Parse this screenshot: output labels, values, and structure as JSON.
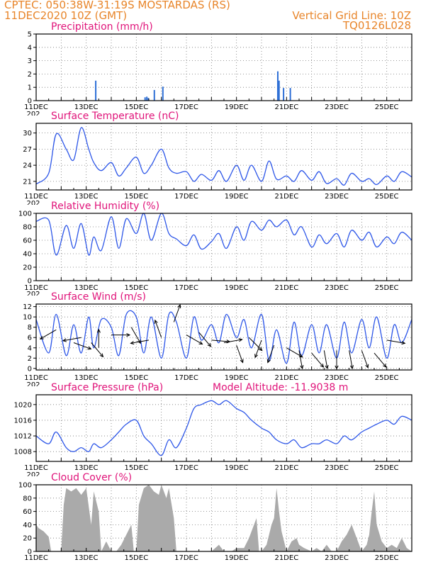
{
  "header": {
    "line1": "CPTEC:   050:38W-31:19S   MOSTARDAS (RS)",
    "line2": "11DEC2020 10Z (GMT)",
    "right1": "Vertical Grid Line: 10Z",
    "right2": "TQ0126L028"
  },
  "x_axis": {
    "days": [
      "11DEC",
      "13DEC",
      "15DEC",
      "17DEC",
      "19DEC",
      "21DEC",
      "23DEC",
      "25DEC"
    ],
    "day_values": [
      0,
      2,
      4,
      6,
      8,
      10,
      12,
      14
    ],
    "overflow_label": "202"
  },
  "chart_data": [
    {
      "id": "precip",
      "type": "bar",
      "title": "Precipitation (mm/h)",
      "color": "#2e6fd6",
      "ylim": [
        0,
        5
      ],
      "yticks": [
        0,
        1,
        2,
        3,
        4,
        5
      ],
      "x_days": [
        2.38,
        4.35,
        4.42,
        4.48,
        4.72,
        5.06,
        9.65,
        9.7,
        9.88,
        10.15
      ],
      "values": [
        1.5,
        0.25,
        0.3,
        0.2,
        0.8,
        1.05,
        2.2,
        1.5,
        0.95,
        0.95
      ]
    },
    {
      "id": "temp",
      "type": "line",
      "title": "Surface Temperature (nC)",
      "color": "#2e57e8",
      "ylim": [
        19.4,
        31.8
      ],
      "yticks": [
        21,
        24,
        27,
        30
      ],
      "x_days": [
        0,
        0.5,
        0.8,
        1.2,
        1.5,
        1.8,
        2.1,
        2.3,
        2.6,
        3.0,
        3.3,
        3.6,
        4.0,
        4.3,
        4.6,
        5.0,
        5.3,
        5.6,
        6.0,
        6.3,
        6.6,
        7.0,
        7.3,
        7.6,
        8.0,
        8.3,
        8.6,
        9.0,
        9.3,
        9.6,
        10.0,
        10.3,
        10.6,
        11.0,
        11.3,
        11.6,
        12.0,
        12.3,
        12.6,
        13.0,
        13.3,
        13.6,
        14.0,
        14.3,
        14.6,
        15.0
      ],
      "values": [
        20.5,
        22.5,
        29.8,
        27.0,
        25.0,
        31.0,
        27.0,
        24.5,
        23.0,
        24.5,
        22.0,
        23.5,
        25.5,
        22.5,
        24.0,
        27.0,
        23.5,
        22.5,
        22.8,
        21.0,
        22.3,
        21.2,
        23.0,
        21.0,
        24.0,
        21.2,
        24.0,
        21.0,
        24.8,
        21.4,
        22.0,
        21.0,
        23.0,
        21.2,
        22.8,
        20.6,
        21.5,
        20.3,
        22.5,
        21.0,
        21.5,
        20.4,
        22.0,
        21.0,
        22.8,
        21.8
      ]
    },
    {
      "id": "rh",
      "type": "line",
      "title": "Relative Humidity (%)",
      "color": "#2e57e8",
      "ylim": [
        0,
        100
      ],
      "yticks": [
        0,
        20,
        40,
        60,
        80,
        100
      ],
      "x_days": [
        0,
        0.5,
        0.8,
        1.2,
        1.5,
        1.8,
        2.1,
        2.3,
        2.6,
        3.0,
        3.3,
        3.6,
        4.0,
        4.3,
        4.6,
        5.0,
        5.3,
        5.6,
        6.0,
        6.3,
        6.6,
        7.0,
        7.3,
        7.6,
        8.0,
        8.3,
        8.6,
        9.0,
        9.3,
        9.6,
        10.0,
        10.3,
        10.6,
        11.0,
        11.3,
        11.6,
        12.0,
        12.3,
        12.6,
        13.0,
        13.3,
        13.6,
        14.0,
        14.3,
        14.6,
        15.0
      ],
      "values": [
        88,
        90,
        38,
        82,
        48,
        85,
        38,
        65,
        45,
        95,
        48,
        92,
        70,
        100,
        60,
        100,
        70,
        62,
        52,
        68,
        47,
        58,
        70,
        48,
        80,
        60,
        88,
        75,
        90,
        80,
        90,
        68,
        80,
        50,
        68,
        55,
        70,
        50,
        75,
        60,
        72,
        50,
        65,
        55,
        72,
        60
      ]
    },
    {
      "id": "wind",
      "type": "line",
      "title": "Surface Wind (m/s)",
      "color": "#2e57e8",
      "ylim": [
        -0.3,
        12.5
      ],
      "yticks": [
        0,
        2,
        4,
        6,
        8,
        10,
        12
      ],
      "x_days": [
        0,
        0.5,
        0.8,
        1.2,
        1.5,
        1.8,
        2.1,
        2.3,
        2.6,
        3.0,
        3.3,
        3.6,
        4.0,
        4.3,
        4.6,
        5.0,
        5.3,
        5.6,
        6.0,
        6.3,
        6.6,
        7.0,
        7.3,
        7.6,
        8.0,
        8.3,
        8.6,
        9.0,
        9.3,
        9.6,
        10.0,
        10.3,
        10.6,
        11.0,
        11.3,
        11.6,
        12.0,
        12.3,
        12.6,
        13.0,
        13.3,
        13.6,
        14.0,
        14.3,
        14.6,
        15.0
      ],
      "values": [
        9.5,
        3.0,
        10.5,
        2.5,
        8.5,
        3.0,
        10.0,
        4.0,
        9.5,
        8.0,
        2.5,
        10.5,
        10.0,
        3.0,
        10.0,
        2.0,
        10.5,
        9.0,
        2.0,
        10.0,
        5.5,
        8.5,
        5.0,
        10.5,
        6.0,
        9.5,
        4.0,
        10.5,
        1.5,
        7.5,
        1.0,
        9.0,
        2.5,
        8.5,
        3.0,
        8.5,
        2.0,
        9.0,
        3.0,
        9.5,
        4.0,
        10.0,
        2.0,
        8.5,
        5.0,
        9.5
      ]
    },
    {
      "id": "pressure",
      "type": "line",
      "title": "Surface Pressure (hPa)",
      "subtitle": "Model Altitude:  -11.9038  m",
      "color": "#2e57e8",
      "ylim": [
        1005.5,
        1022.5
      ],
      "yticks": [
        1008,
        1012,
        1016,
        1020
      ],
      "x_days": [
        0,
        0.5,
        0.8,
        1.2,
        1.5,
        1.8,
        2.1,
        2.3,
        2.6,
        3.0,
        3.3,
        3.6,
        4.0,
        4.3,
        4.6,
        5.0,
        5.3,
        5.6,
        6.0,
        6.3,
        6.6,
        7.0,
        7.3,
        7.6,
        8.0,
        8.3,
        8.6,
        9.0,
        9.3,
        9.6,
        10.0,
        10.3,
        10.6,
        11.0,
        11.3,
        11.6,
        12.0,
        12.3,
        12.6,
        13.0,
        13.3,
        13.6,
        14.0,
        14.3,
        14.6,
        15.0
      ],
      "values": [
        1012,
        1010,
        1013,
        1009,
        1008,
        1009,
        1008,
        1010,
        1009,
        1011,
        1013,
        1015,
        1016,
        1012,
        1010,
        1007,
        1011,
        1009,
        1014,
        1019,
        1020,
        1021,
        1020,
        1021,
        1019,
        1018,
        1016,
        1014,
        1013,
        1011,
        1010,
        1011,
        1009,
        1010,
        1010,
        1011,
        1010,
        1012,
        1011,
        1013,
        1014,
        1015,
        1016,
        1015,
        1017,
        1016
      ]
    },
    {
      "id": "cloud",
      "type": "area",
      "title": "Cloud Cover (%)",
      "color": "#aaaaaa",
      "ylim": [
        0,
        100
      ],
      "yticks": [
        0,
        20,
        40,
        60,
        80,
        100
      ],
      "x_days": [
        0,
        0.1,
        0.3,
        0.5,
        0.6,
        0.7,
        1.0,
        1.1,
        1.2,
        1.4,
        1.6,
        1.8,
        2.0,
        2.2,
        2.3,
        2.5,
        2.6,
        2.8,
        3.0,
        3.2,
        3.4,
        3.6,
        3.8,
        3.9,
        4.0,
        4.1,
        4.3,
        4.5,
        4.7,
        4.9,
        5.0,
        5.2,
        5.3,
        5.5,
        5.6,
        5.9,
        6.2,
        6.5,
        7.0,
        7.3,
        7.5,
        7.8,
        8.0,
        8.3,
        8.5,
        8.8,
        8.9,
        9.0,
        9.2,
        9.4,
        9.5,
        9.6,
        9.7,
        9.8,
        9.9,
        10.0,
        10.2,
        10.4,
        10.5,
        10.7,
        11.0,
        11.2,
        11.4,
        11.6,
        11.8,
        12.0,
        12.2,
        12.4,
        12.6,
        12.8,
        13.0,
        13.2,
        13.3,
        13.4,
        13.5,
        13.6,
        13.8,
        14.0,
        14.2,
        14.4,
        14.6,
        14.8,
        15.0
      ],
      "values": [
        40,
        35,
        30,
        22,
        0,
        0,
        0,
        70,
        95,
        90,
        95,
        85,
        95,
        40,
        90,
        60,
        0,
        15,
        0,
        0,
        10,
        25,
        40,
        0,
        0,
        70,
        95,
        100,
        90,
        85,
        100,
        80,
        95,
        50,
        0,
        0,
        0,
        0,
        0,
        10,
        0,
        0,
        5,
        5,
        20,
        50,
        0,
        0,
        10,
        40,
        50,
        95,
        60,
        30,
        15,
        0,
        15,
        20,
        10,
        5,
        0,
        5,
        0,
        10,
        0,
        0,
        15,
        25,
        40,
        20,
        0,
        10,
        25,
        60,
        90,
        40,
        15,
        5,
        10,
        5,
        20,
        5,
        0
      ]
    }
  ],
  "wind_vectors": {
    "color": "#000000",
    "items": [
      {
        "day": 0.8,
        "speed": 7.5,
        "dir_deg": 240
      },
      {
        "day": 1.5,
        "speed": 5.0,
        "dir_deg": 110
      },
      {
        "day": 1.8,
        "speed": 6.0,
        "dir_deg": 260
      },
      {
        "day": 2.2,
        "speed": 5.0,
        "dir_deg": 140
      },
      {
        "day": 2.5,
        "speed": 4.0,
        "dir_deg": 0
      },
      {
        "day": 3.0,
        "speed": 6.5,
        "dir_deg": 90
      },
      {
        "day": 3.8,
        "speed": 8.0,
        "dir_deg": 150
      },
      {
        "day": 4.5,
        "speed": 5.5,
        "dir_deg": 260
      },
      {
        "day": 5.0,
        "speed": 6.0,
        "dir_deg": 340
      },
      {
        "day": 5.5,
        "speed": 9.0,
        "dir_deg": 20
      },
      {
        "day": 6.0,
        "speed": 6.5,
        "dir_deg": 120
      },
      {
        "day": 6.5,
        "speed": 7.0,
        "dir_deg": 140
      },
      {
        "day": 7.0,
        "speed": 5.5,
        "dir_deg": 95
      },
      {
        "day": 7.5,
        "speed": 5.0,
        "dir_deg": 80
      },
      {
        "day": 8.0,
        "speed": 4.5,
        "dir_deg": 160
      },
      {
        "day": 8.5,
        "speed": 6.0,
        "dir_deg": 135
      },
      {
        "day": 9.0,
        "speed": 5.5,
        "dir_deg": 200
      },
      {
        "day": 9.5,
        "speed": 4.5,
        "dir_deg": 200
      },
      {
        "day": 10.0,
        "speed": 4.0,
        "dir_deg": 120
      },
      {
        "day": 10.5,
        "speed": 3.5,
        "dir_deg": 170
      },
      {
        "day": 11.0,
        "speed": 3.0,
        "dir_deg": 140
      },
      {
        "day": 11.5,
        "speed": 3.5,
        "dir_deg": 170
      },
      {
        "day": 12.0,
        "speed": 3.5,
        "dir_deg": 180
      },
      {
        "day": 12.5,
        "speed": 3.5,
        "dir_deg": 170
      },
      {
        "day": 13.0,
        "speed": 3.5,
        "dir_deg": 160
      },
      {
        "day": 13.5,
        "speed": 3.0,
        "dir_deg": 140
      },
      {
        "day": 14.0,
        "speed": 5.5,
        "dir_deg": 100
      }
    ]
  }
}
